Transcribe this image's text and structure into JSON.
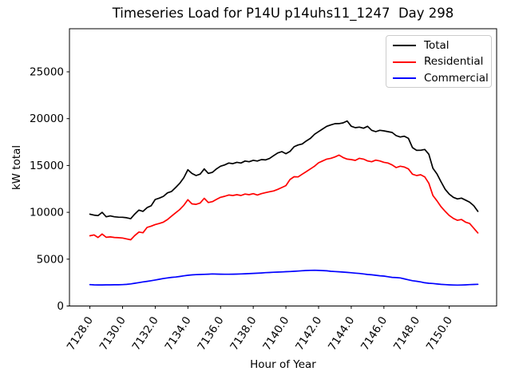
{
  "chart_data": {
    "type": "line",
    "title": "Timeseries Load for P14U p14uhs11_1247  Day 298",
    "xlabel": "Hour of Year",
    "ylabel": "kW total",
    "xlim": [
      7126.75,
      7152.9
    ],
    "ylim": [
      0,
      29600
    ],
    "grid": false,
    "legend_position": "upper right",
    "x_ticks": {
      "values": [
        7128,
        7130,
        7132,
        7134,
        7136,
        7138,
        7140,
        7142,
        7144,
        7146,
        7148,
        7150
      ],
      "labels": [
        "7128.0",
        "7130.0",
        "7132.0",
        "7134.0",
        "7136.0",
        "7138.0",
        "7140.0",
        "7142.0",
        "7144.0",
        "7146.0",
        "7148.0",
        "7150.0"
      ]
    },
    "y_ticks": {
      "values": [
        0,
        5000,
        10000,
        15000,
        20000,
        25000
      ],
      "labels": [
        "0",
        "5000",
        "10000",
        "15000",
        "20000",
        "25000"
      ]
    },
    "x": [
      7128.0,
      7128.25,
      7128.5,
      7128.75,
      7129.0,
      7129.25,
      7129.5,
      7129.75,
      7130.0,
      7130.25,
      7130.5,
      7130.75,
      7131.0,
      7131.25,
      7131.5,
      7131.75,
      7132.0,
      7132.25,
      7132.5,
      7132.75,
      7133.0,
      7133.25,
      7133.5,
      7133.75,
      7134.0,
      7134.25,
      7134.5,
      7134.75,
      7135.0,
      7135.25,
      7135.5,
      7135.75,
      7136.0,
      7136.25,
      7136.5,
      7136.75,
      7137.0,
      7137.25,
      7137.5,
      7137.75,
      7138.0,
      7138.25,
      7138.5,
      7138.75,
      7139.0,
      7139.25,
      7139.5,
      7139.75,
      7140.0,
      7140.25,
      7140.5,
      7140.75,
      7141.0,
      7141.25,
      7141.5,
      7141.75,
      7142.0,
      7142.25,
      7142.5,
      7142.75,
      7143.0,
      7143.25,
      7143.5,
      7143.75,
      7144.0,
      7144.25,
      7144.5,
      7144.75,
      7145.0,
      7145.25,
      7145.5,
      7145.75,
      7146.0,
      7146.25,
      7146.5,
      7146.75,
      7147.0,
      7147.25,
      7147.5,
      7147.75,
      7148.0,
      7148.25,
      7148.5,
      7148.75,
      7149.0,
      7149.25,
      7149.5,
      7149.75,
      7150.0,
      7150.25,
      7150.5,
      7150.75,
      7151.0,
      7151.25,
      7151.5,
      7151.75
    ],
    "series": [
      {
        "name": "Total",
        "color": "#000000",
        "values": [
          9800,
          9700,
          9650,
          10000,
          9520,
          9620,
          9520,
          9480,
          9470,
          9420,
          9320,
          9820,
          10240,
          10100,
          10500,
          10700,
          11370,
          11520,
          11700,
          12080,
          12230,
          12650,
          13100,
          13700,
          14550,
          14150,
          13930,
          14080,
          14630,
          14160,
          14270,
          14630,
          14920,
          15060,
          15260,
          15200,
          15340,
          15260,
          15480,
          15400,
          15550,
          15480,
          15630,
          15600,
          15750,
          16050,
          16340,
          16480,
          16260,
          16500,
          17000,
          17190,
          17300,
          17620,
          17900,
          18330,
          18620,
          18900,
          19180,
          19330,
          19460,
          19470,
          19550,
          19750,
          19190,
          19040,
          19100,
          18980,
          19185,
          18760,
          18615,
          18760,
          18700,
          18615,
          18530,
          18190,
          18045,
          18130,
          17900,
          16910,
          16620,
          16630,
          16715,
          16200,
          14700,
          14100,
          13250,
          12450,
          11940,
          11600,
          11430,
          11515,
          11300,
          11085,
          10700,
          10100
        ]
      },
      {
        "name": "Residential",
        "color": "#ff0000",
        "values": [
          7500,
          7590,
          7320,
          7680,
          7330,
          7380,
          7320,
          7290,
          7260,
          7160,
          7070,
          7520,
          7900,
          7820,
          8390,
          8530,
          8700,
          8810,
          8950,
          9230,
          9600,
          9950,
          10300,
          10750,
          11350,
          10900,
          10850,
          11000,
          11500,
          11050,
          11140,
          11380,
          11600,
          11715,
          11850,
          11800,
          11885,
          11800,
          11950,
          11885,
          11995,
          11850,
          11995,
          12100,
          12200,
          12280,
          12450,
          12650,
          12850,
          13500,
          13800,
          13785,
          14075,
          14355,
          14630,
          14920,
          15290,
          15485,
          15685,
          15770,
          15910,
          16110,
          15855,
          15685,
          15630,
          15545,
          15770,
          15685,
          15485,
          15400,
          15570,
          15485,
          15345,
          15260,
          15060,
          14775,
          14920,
          14835,
          14630,
          14075,
          13930,
          14015,
          13785,
          13100,
          11800,
          11225,
          10600,
          10100,
          9660,
          9350,
          9150,
          9235,
          8950,
          8810,
          8300,
          7800
        ]
      },
      {
        "name": "Commercial",
        "color": "#0000ff",
        "values": [
          2280,
          2260,
          2250,
          2250,
          2255,
          2260,
          2265,
          2270,
          2280,
          2310,
          2360,
          2430,
          2500,
          2570,
          2630,
          2700,
          2780,
          2855,
          2930,
          3000,
          3060,
          3090,
          3150,
          3220,
          3280,
          3320,
          3350,
          3365,
          3380,
          3400,
          3420,
          3410,
          3400,
          3390,
          3390,
          3400,
          3410,
          3420,
          3440,
          3460,
          3480,
          3505,
          3530,
          3560,
          3580,
          3600,
          3620,
          3640,
          3660,
          3680,
          3705,
          3730,
          3765,
          3790,
          3810,
          3815,
          3800,
          3780,
          3760,
          3705,
          3680,
          3650,
          3620,
          3590,
          3550,
          3510,
          3475,
          3420,
          3365,
          3330,
          3280,
          3230,
          3195,
          3130,
          3060,
          3030,
          3000,
          2900,
          2795,
          2700,
          2640,
          2570,
          2480,
          2430,
          2400,
          2350,
          2310,
          2285,
          2260,
          2240,
          2230,
          2240,
          2260,
          2285,
          2300,
          2315
        ]
      }
    ]
  }
}
